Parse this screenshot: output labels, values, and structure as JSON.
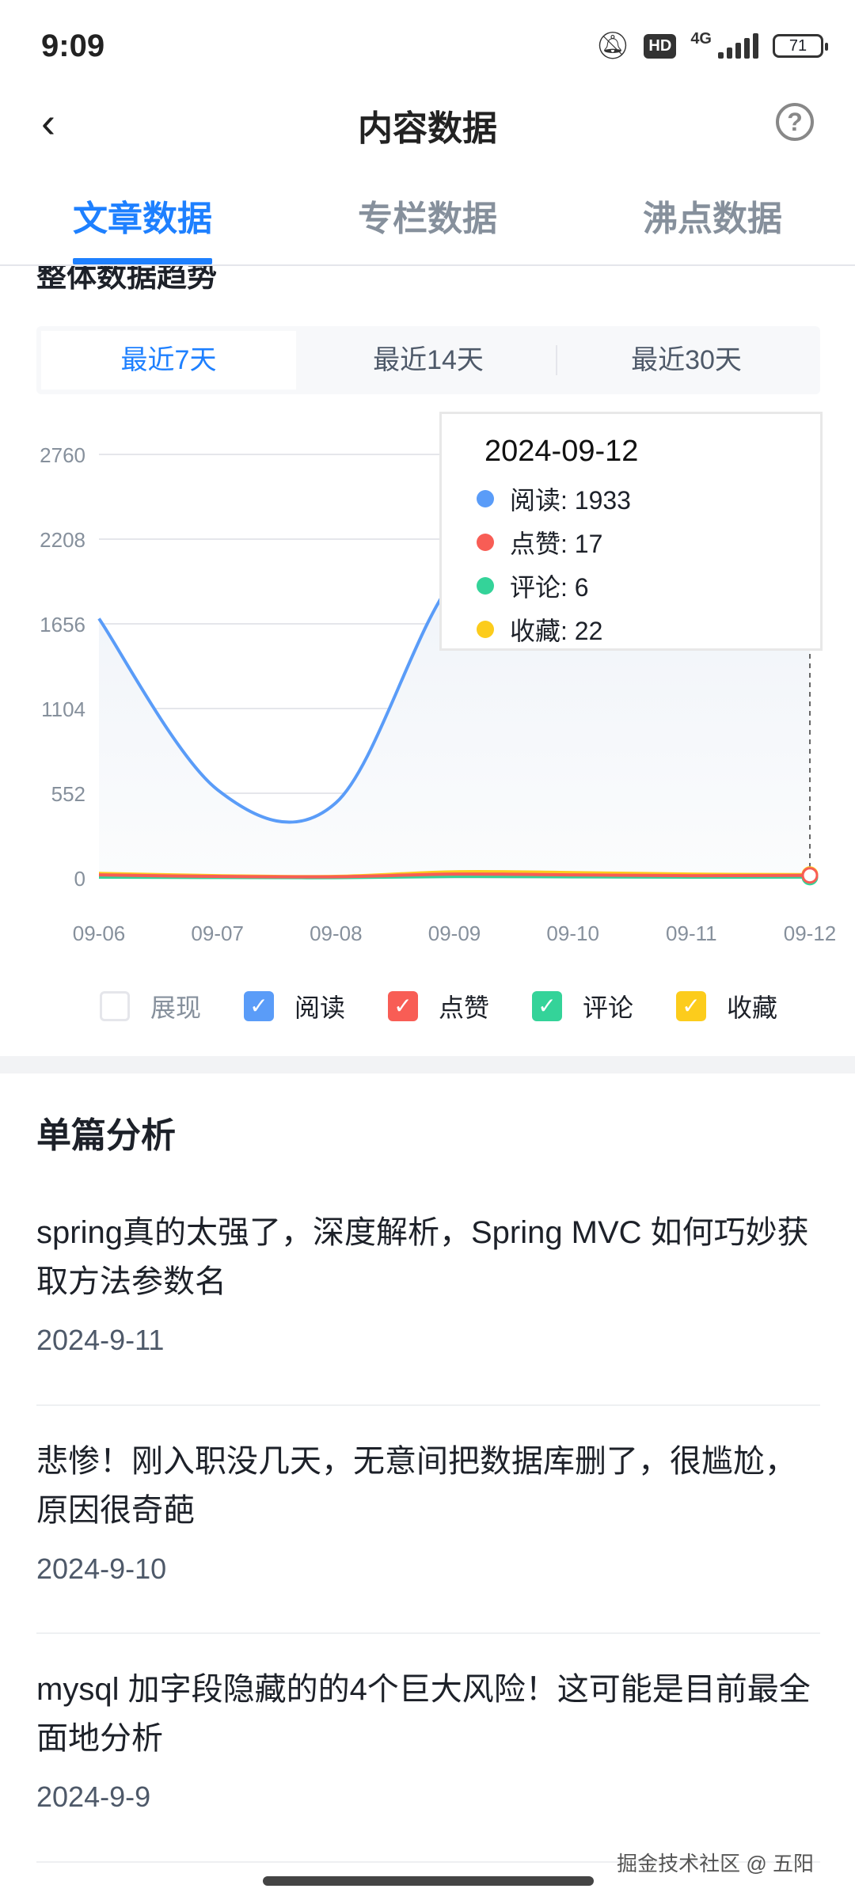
{
  "status_bar": {
    "time": "9:09",
    "hd": "HD",
    "network": "4G",
    "battery": "71",
    "icons": [
      "bell-off-icon",
      "hd-icon",
      "signal-icon",
      "battery-icon"
    ]
  },
  "header": {
    "title": "内容数据",
    "back_icon": "chevron-left-icon",
    "help_icon": "question-circle-icon"
  },
  "tabs": [
    {
      "label": "文章数据",
      "active": true
    },
    {
      "label": "专栏数据",
      "active": false
    },
    {
      "label": "沸点数据",
      "active": false
    }
  ],
  "trend": {
    "title": "整体数据趋势",
    "ranges": [
      {
        "label": "最近7天",
        "active": true
      },
      {
        "label": "最近14天"
      },
      {
        "label": "最近30天"
      }
    ]
  },
  "chart_data": {
    "type": "line",
    "x": [
      "09-06",
      "09-07",
      "09-08",
      "09-09",
      "09-10",
      "09-11",
      "09-12"
    ],
    "yticks": [
      0,
      552,
      1104,
      1656,
      2208,
      2760
    ],
    "ylim": [
      0,
      2760
    ],
    "grid": true,
    "series": [
      {
        "name": "阅读",
        "color": "#5a9cf8",
        "values": [
          1690,
          575,
          490,
          1950,
          2350,
          2200,
          1933
        ]
      },
      {
        "name": "点赞",
        "color": "#f85d55",
        "values": [
          20,
          10,
          8,
          25,
          20,
          15,
          17
        ]
      },
      {
        "name": "评论",
        "color": "#34d399",
        "values": [
          5,
          3,
          2,
          10,
          8,
          5,
          6
        ]
      },
      {
        "name": "收藏",
        "color": "#fccc1c",
        "values": [
          30,
          15,
          10,
          40,
          35,
          25,
          22
        ]
      }
    ],
    "tooltip": {
      "title": "2024-09-12",
      "rows": [
        {
          "label": "阅读: 1933",
          "color": "#5a9cf8"
        },
        {
          "label": "点赞: 17",
          "color": "#f85d55"
        },
        {
          "label": "评论: 6",
          "color": "#34d399"
        },
        {
          "label": "收藏: 22",
          "color": "#fccc1c"
        }
      ]
    },
    "legend": [
      {
        "label": "展现",
        "checked": false,
        "color": "#ffffff"
      },
      {
        "label": "阅读",
        "checked": true,
        "color": "#5a9cf8"
      },
      {
        "label": "点赞",
        "checked": true,
        "color": "#f85d55"
      },
      {
        "label": "评论",
        "checked": true,
        "color": "#34d399"
      },
      {
        "label": "收藏",
        "checked": true,
        "color": "#fccc1c"
      }
    ]
  },
  "analysis": {
    "title": "单篇分析",
    "articles": [
      {
        "title": "spring真的太强了，深度解析，Spring MVC 如何巧妙获取方法参数名",
        "date": "2024-9-11"
      },
      {
        "title": "悲惨！刚入职没几天，无意间把数据库删了，很尴尬，原因很奇葩",
        "date": "2024-9-10"
      },
      {
        "title": "mysql 加字段隐藏的的4个巨大风险！这可能是目前最全面地分析",
        "date": "2024-9-9"
      }
    ]
  },
  "watermark": "掘金技术社区 @ 五阳"
}
